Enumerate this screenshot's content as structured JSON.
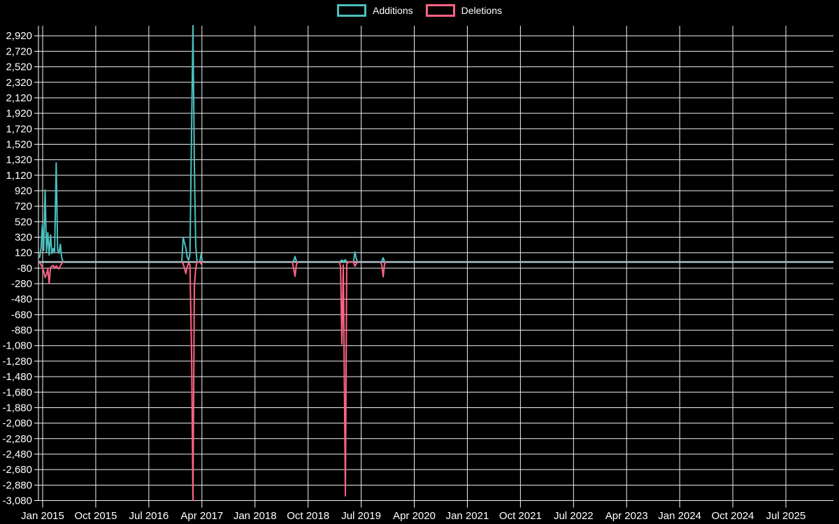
{
  "app": {
    "background_color": "#000000",
    "text_color": "#ffffff",
    "grid_color": "#f0f0f0",
    "zero_line_color": "#adc3cc"
  },
  "legend": {
    "items": [
      {
        "label": "Additions",
        "color": "#4bc0c0"
      },
      {
        "label": "Deletions",
        "color": "#ff6384"
      }
    ]
  },
  "chart_data": {
    "type": "line",
    "title": "",
    "legend_position": "top-center",
    "grid": true,
    "x_axis": {
      "tick_labels": [
        "Jan 2015",
        "Oct 2015",
        "Jul 2016",
        "Apr 2017",
        "Jan 2018",
        "Oct 2018",
        "Jul 2019",
        "Apr 2020",
        "Jan 2021",
        "Oct 2021",
        "Jul 2022",
        "Apr 2023",
        "Jan 2024",
        "Oct 2024",
        "Jul 2025"
      ],
      "tick_years": [
        2015.0,
        2015.75,
        2016.5,
        2017.25,
        2018.0,
        2018.75,
        2019.5,
        2020.25,
        2021.0,
        2021.75,
        2022.5,
        2023.25,
        2024.0,
        2024.75,
        2025.5
      ],
      "range_years": [
        2014.94,
        2026.17
      ]
    },
    "y_axis": {
      "tick_labels": [
        "2,920",
        "2,720",
        "2,520",
        "2,320",
        "2,120",
        "1,920",
        "1,720",
        "1,520",
        "1,320",
        "1,120",
        "920",
        "720",
        "520",
        "320",
        "120",
        "-80",
        "-280",
        "-480",
        "-680",
        "-880",
        "-1,080",
        "-1,280",
        "-1,480",
        "-1,680",
        "-1,880",
        "-2,080",
        "-2,280",
        "-2,480",
        "-2,680",
        "-2,880",
        "-3,080"
      ],
      "min": -3080,
      "max": 3050,
      "tick_step": 200
    },
    "series_meta": [
      {
        "name": "Additions",
        "color": "#4bc0c0"
      },
      {
        "name": "Deletions",
        "color": "#ff6384"
      }
    ],
    "baseline_value": 0,
    "clusters": [
      {
        "points": [
          [
            2014.958,
            60,
            -10
          ],
          [
            2014.977,
            180,
            -35
          ],
          [
            2014.996,
            480,
            -70
          ],
          [
            2015.015,
            150,
            -120
          ],
          [
            2015.035,
            930,
            -200
          ],
          [
            2015.054,
            130,
            -160
          ],
          [
            2015.073,
            380,
            -90
          ],
          [
            2015.092,
            90,
            -280
          ],
          [
            2015.112,
            350,
            -70
          ],
          [
            2015.131,
            110,
            -55
          ],
          [
            2015.15,
            175,
            -45
          ],
          [
            2015.169,
            125,
            -80
          ],
          [
            2015.192,
            1280,
            -50
          ],
          [
            2015.211,
            150,
            -70
          ],
          [
            2015.23,
            115,
            -90
          ],
          [
            2015.25,
            230,
            -50
          ],
          [
            2015.269,
            60,
            -20
          ],
          [
            2015.288,
            0,
            0
          ]
        ]
      },
      {
        "points": [
          [
            2016.966,
            0,
            0
          ],
          [
            2016.985,
            320,
            -25
          ],
          [
            2017.004,
            245,
            -85
          ],
          [
            2017.023,
            180,
            -150
          ],
          [
            2017.043,
            60,
            -60
          ],
          [
            2017.062,
            25,
            -15
          ],
          [
            2017.081,
            105,
            -35
          ],
          [
            2017.105,
            1760,
            -1240
          ],
          [
            2017.124,
            3050,
            -3080
          ],
          [
            2017.143,
            1255,
            -310
          ],
          [
            2017.162,
            215,
            -85
          ],
          [
            2017.181,
            0,
            0
          ],
          [
            2017.22,
            0,
            0
          ],
          [
            2017.239,
            105,
            -25
          ],
          [
            2017.258,
            0,
            0
          ]
        ]
      },
      {
        "points": [
          [
            2018.527,
            0,
            0
          ],
          [
            2018.546,
            15,
            -85
          ],
          [
            2018.566,
            70,
            -185
          ],
          [
            2018.585,
            10,
            -35
          ],
          [
            2018.604,
            0,
            0
          ]
        ]
      },
      {
        "points": [
          [
            2019.19,
            0,
            0
          ],
          [
            2019.209,
            10,
            -60
          ],
          [
            2019.228,
            25,
            -1060
          ],
          [
            2019.247,
            5,
            -40
          ],
          [
            2019.277,
            30,
            -3020
          ],
          [
            2019.296,
            0,
            -30
          ],
          [
            2019.315,
            0,
            0
          ],
          [
            2019.392,
            0,
            0
          ],
          [
            2019.411,
            130,
            -55
          ],
          [
            2019.43,
            45,
            -25
          ],
          [
            2019.449,
            0,
            0
          ]
        ]
      },
      {
        "points": [
          [
            2019.773,
            0,
            0
          ],
          [
            2019.792,
            10,
            -40
          ],
          [
            2019.811,
            55,
            -190
          ],
          [
            2019.83,
            5,
            -25
          ],
          [
            2019.849,
            0,
            0
          ]
        ]
      }
    ]
  }
}
